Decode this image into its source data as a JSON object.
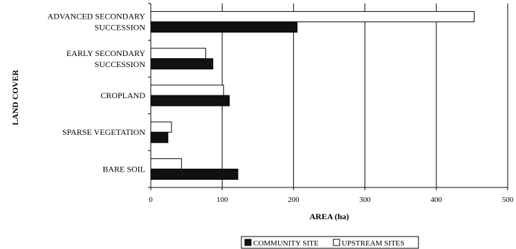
{
  "chart_data": {
    "type": "bar",
    "orientation": "horizontal",
    "categories": [
      [
        "ADVANCED SECONDARY",
        "SUCCESSION"
      ],
      [
        "EARLY SECONDARY",
        "SUCCESSION"
      ],
      [
        "CROPLAND"
      ],
      [
        "SPARSE VEGETATION"
      ],
      [
        "BARE SOIL"
      ]
    ],
    "series": [
      {
        "name": "COMMUNITY SITE",
        "values": [
          205,
          87,
          110,
          24,
          122
        ],
        "color": "#111111"
      },
      {
        "name": "UPSTREAM SITES",
        "values": [
          453,
          77,
          102,
          29,
          43
        ],
        "color": "#ffffff"
      }
    ],
    "xlabel": "AREA (ha)",
    "ylabel": "LAND COVER",
    "xlim": [
      0,
      500
    ],
    "xticks": [
      0,
      100,
      200,
      300,
      400,
      500
    ],
    "grid": "vertical",
    "legend_position": "bottom"
  }
}
